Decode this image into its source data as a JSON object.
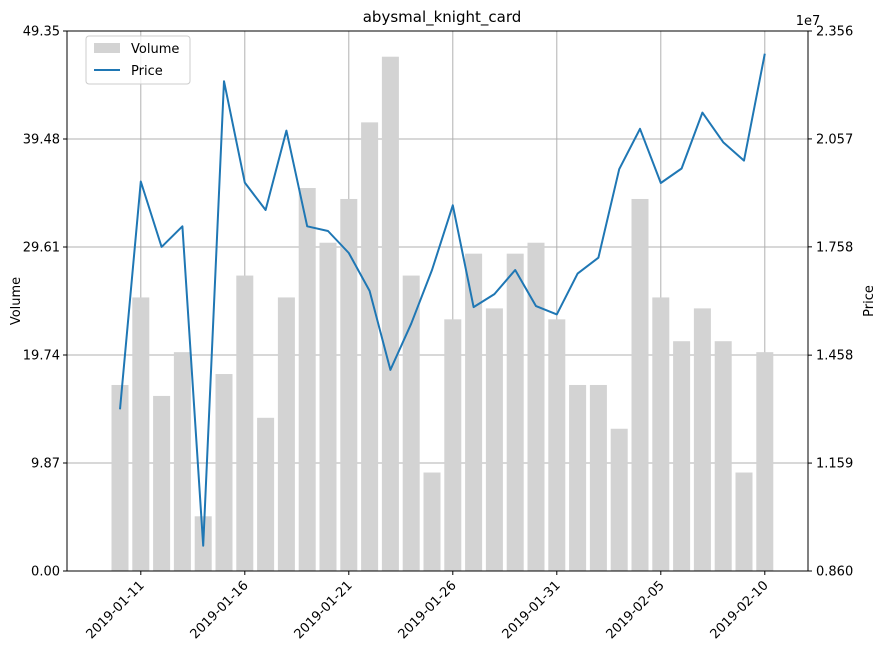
{
  "chart_data": {
    "type": "bar+line",
    "title": "abysmal_knight_card",
    "xlabel": "",
    "ylabel_left": "Volume",
    "ylabel_right": "Price",
    "right_axis_offset_text": "1e7",
    "ylim_left": [
      0,
      49.35
    ],
    "ylim_right": [
      0.86,
      2.356
    ],
    "yticks_left": [
      "0.00",
      "9.87",
      "19.74",
      "29.61",
      "39.48",
      "49.35"
    ],
    "yticks_right": [
      "0.860",
      "1.159",
      "1.458",
      "1.758",
      "2.057",
      "2.356"
    ],
    "yticks_left_values": [
      0,
      9.87,
      19.74,
      29.61,
      39.48,
      49.35
    ],
    "yticks_right_values": [
      0.86,
      1.159,
      1.458,
      1.758,
      2.057,
      2.356
    ],
    "xticks": [
      "2019-01-11",
      "2019-01-16",
      "2019-01-21",
      "2019-01-26",
      "2019-01-31",
      "2019-02-05",
      "2019-02-10"
    ],
    "xticks_dates": [
      "2019-01-11",
      "2019-01-16",
      "2019-01-21",
      "2019-01-26",
      "2019-01-31",
      "2019-02-05",
      "2019-02-10"
    ],
    "grid": true,
    "legend_position": "upper-left",
    "legend": [
      {
        "label": "Volume",
        "kind": "bar",
        "color": "#d3d3d3"
      },
      {
        "label": "Price",
        "kind": "line",
        "color": "#1f77b4"
      }
    ],
    "x": [
      "2019-01-10",
      "2019-01-11",
      "2019-01-12",
      "2019-01-13",
      "2019-01-14",
      "2019-01-15",
      "2019-01-16",
      "2019-01-17",
      "2019-01-18",
      "2019-01-19",
      "2019-01-20",
      "2019-01-21",
      "2019-01-22",
      "2019-01-23",
      "2019-01-24",
      "2019-01-25",
      "2019-01-26",
      "2019-01-27",
      "2019-01-28",
      "2019-01-29",
      "2019-01-30",
      "2019-01-31",
      "2019-02-01",
      "2019-02-02",
      "2019-02-03",
      "2019-02-04",
      "2019-02-05",
      "2019-02-06",
      "2019-02-07",
      "2019-02-08",
      "2019-02-09",
      "2019-02-10"
    ],
    "series": [
      {
        "name": "Volume",
        "kind": "bar",
        "axis": "left",
        "color": "#d3d3d3",
        "values": [
          17,
          25,
          16,
          20,
          5,
          18,
          27,
          14,
          25,
          35,
          30,
          34,
          41,
          47,
          27,
          9,
          23,
          29,
          24,
          29,
          30,
          23,
          17,
          17,
          13,
          34,
          25,
          21,
          24,
          21,
          9,
          20
        ]
      },
      {
        "name": "Price",
        "kind": "line",
        "axis": "right",
        "color": "#1f77b4",
        "values": [
          1.308,
          1.939,
          1.758,
          1.815,
          0.93,
          2.217,
          1.936,
          1.86,
          2.08,
          1.815,
          1.802,
          1.741,
          1.636,
          1.417,
          1.545,
          1.694,
          1.873,
          1.591,
          1.627,
          1.694,
          1.594,
          1.571,
          1.684,
          1.728,
          1.973,
          2.085,
          1.935,
          1.975,
          2.13,
          2.048,
          1.997,
          2.293
        ]
      }
    ]
  }
}
